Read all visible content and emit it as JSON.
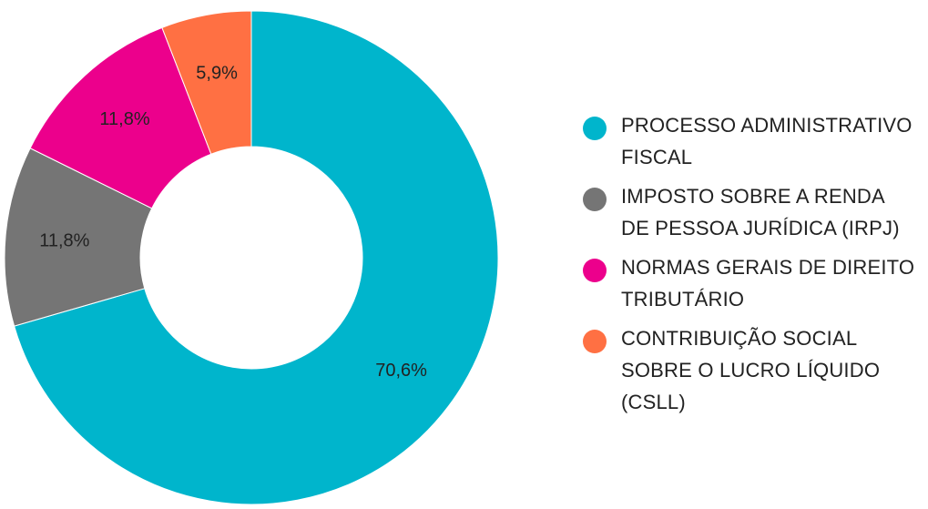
{
  "chart_data": {
    "type": "pie",
    "donut": true,
    "categories": [
      "PROCESSO ADMINISTRATIVO FISCAL",
      "IMPOSTO SOBRE A RENDA DE PESSOA JURÍDICA (IRPJ)",
      "NORMAS GERAIS DE DIREITO TRIBUTÁRIO",
      "CONTRIBUIÇÃO SOCIAL SOBRE O LUCRO LÍQUIDO (CSLL)"
    ],
    "values": [
      70.6,
      11.8,
      11.8,
      5.9
    ],
    "data_labels": [
      "70,6%",
      "11,8%",
      "11,8%",
      "5,9%"
    ],
    "colors": [
      "#00b5cc",
      "#757575",
      "#ec008c",
      "#ff7043"
    ],
    "legend_placement": "right"
  },
  "legend": {
    "items": [
      {
        "lines": [
          "PROCESSO ADMINISTRATIVO",
          "FISCAL"
        ]
      },
      {
        "lines": [
          "IMPOSTO SOBRE A RENDA",
          "DE PESSOA JURÍDICA (IRPJ)"
        ]
      },
      {
        "lines": [
          "NORMAS GERAIS DE DIREITO",
          "TRIBUTÁRIO"
        ]
      },
      {
        "lines": [
          "CONTRIBUIÇÃO SOCIAL",
          "SOBRE O LUCRO LÍQUIDO",
          "(CSLL)"
        ]
      }
    ]
  }
}
